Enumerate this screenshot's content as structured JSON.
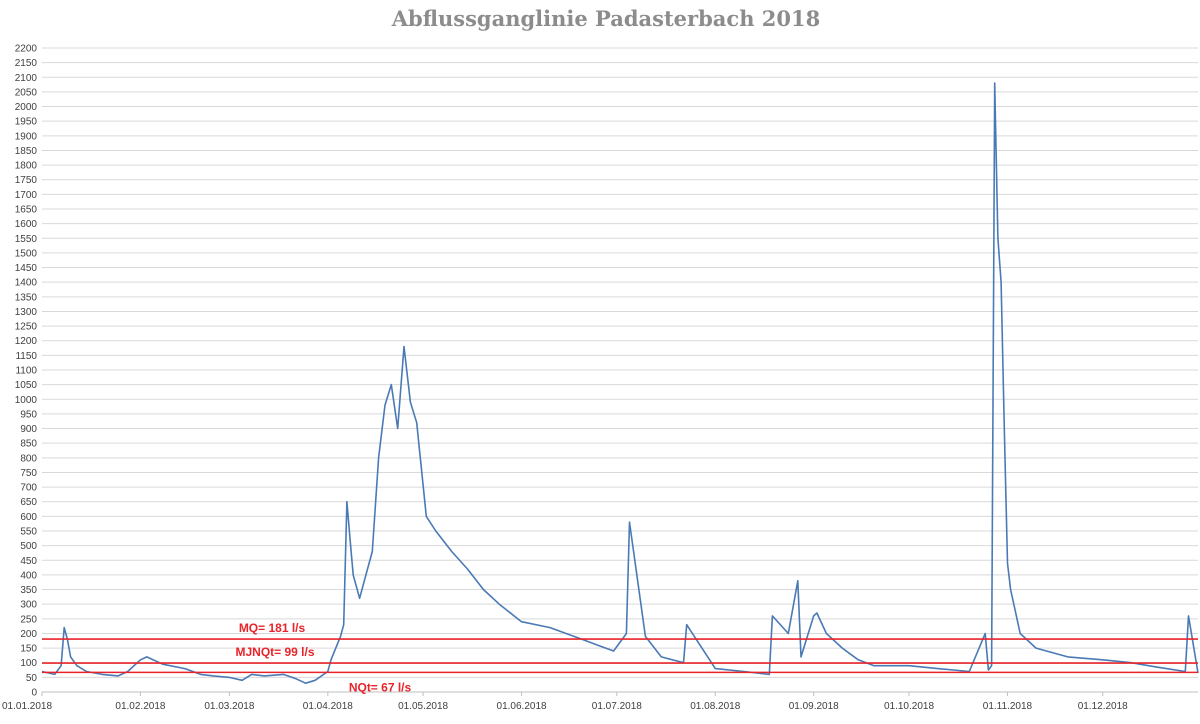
{
  "chart_data": {
    "type": "line",
    "title": "Abflussganglinie Padasterbach 2018",
    "xlabel": "",
    "ylabel": "",
    "ylim": [
      0,
      2200
    ],
    "y_ticks": [
      0,
      50,
      100,
      150,
      200,
      250,
      300,
      350,
      400,
      450,
      500,
      550,
      600,
      650,
      700,
      750,
      800,
      850,
      900,
      950,
      1000,
      1050,
      1100,
      1150,
      1200,
      1250,
      1300,
      1350,
      1400,
      1450,
      1500,
      1550,
      1600,
      1650,
      1700,
      1750,
      1800,
      1850,
      1900,
      1950,
      2000,
      2050,
      2100,
      2150,
      2200
    ],
    "x_ticks": [
      "01.01.2018",
      "01.02.2018",
      "01.03.2018",
      "01.04.2018",
      "01.05.2018",
      "01.06.2018",
      "01.07.2018",
      "01.08.2018",
      "01.09.2018",
      "01.10.2018",
      "01.11.2018",
      "01.12.2018"
    ],
    "grid": true,
    "series_color": "#4a7ab5",
    "reference_lines": [
      {
        "label": "MQ= 181 l/s",
        "value": 181,
        "color": "#e8242a"
      },
      {
        "label": "MJNQt= 99 l/s",
        "value": 99,
        "color": "#e8242a"
      },
      {
        "label": "NQt= 67 l/s",
        "value": 67,
        "color": "#e8242a"
      }
    ],
    "series": [
      {
        "x": [
          "01.01.2018",
          "05.01.2018",
          "07.01.2018",
          "08.01.2018",
          "09.01.2018",
          "10.01.2018",
          "12.01.2018",
          "15.01.2018",
          "20.01.2018",
          "25.01.2018",
          "28.01.2018",
          "01.02.2018",
          "03.02.2018",
          "08.02.2018",
          "15.02.2018",
          "20.02.2018",
          "24.02.2018",
          "01.03.2018",
          "05.03.2018",
          "08.03.2018",
          "12.03.2018",
          "18.03.2018",
          "22.03.2018",
          "25.03.2018",
          "28.03.2018",
          "01.04.2018",
          "02.04.2018",
          "05.04.2018",
          "06.04.2018",
          "07.04.2018",
          "08.04.2018",
          "09.04.2018",
          "11.04.2018",
          "13.04.2018",
          "15.04.2018",
          "17.04.2018",
          "19.04.2018",
          "21.04.2018",
          "23.04.2018",
          "25.04.2018",
          "27.04.2018",
          "29.04.2018",
          "02.05.2018",
          "05.05.2018",
          "10.05.2018",
          "15.05.2018",
          "20.05.2018",
          "25.05.2018",
          "01.06.2018",
          "10.06.2018",
          "20.06.2018",
          "25.06.2018",
          "30.06.2018",
          "04.07.2018",
          "05.07.2018",
          "10.07.2018",
          "15.07.2018",
          "22.07.2018",
          "23.07.2018",
          "01.08.2018",
          "10.08.2018",
          "18.08.2018",
          "19.08.2018",
          "24.08.2018",
          "27.08.2018",
          "28.08.2018",
          "01.09.2018",
          "02.09.2018",
          "05.09.2018",
          "10.09.2018",
          "15.09.2018",
          "20.09.2018",
          "01.10.2018",
          "10.10.2018",
          "15.10.2018",
          "20.10.2018",
          "25.10.2018",
          "26.10.2018",
          "27.10.2018",
          "28.10.2018",
          "29.10.2018",
          "30.10.2018",
          "31.10.2018",
          "01.11.2018",
          "02.11.2018",
          "05.11.2018",
          "10.11.2018",
          "20.11.2018",
          "01.12.2018",
          "10.12.2018",
          "18.12.2018",
          "27.12.2018",
          "28.12.2018",
          "31.12.2018"
        ],
        "values": [
          70,
          60,
          90,
          220,
          180,
          120,
          90,
          70,
          60,
          55,
          70,
          110,
          120,
          95,
          80,
          60,
          55,
          50,
          40,
          60,
          55,
          60,
          45,
          30,
          40,
          70,
          110,
          190,
          230,
          650,
          520,
          400,
          320,
          400,
          480,
          800,
          980,
          1050,
          900,
          1180,
          990,
          920,
          600,
          550,
          480,
          420,
          350,
          300,
          240,
          220,
          180,
          160,
          140,
          200,
          580,
          190,
          120,
          100,
          230,
          80,
          70,
          60,
          260,
          200,
          380,
          120,
          260,
          270,
          200,
          150,
          110,
          90,
          90,
          80,
          75,
          70,
          200,
          75,
          90,
          2080,
          1550,
          1400,
          900,
          440,
          350,
          200,
          150,
          120,
          110,
          100,
          85,
          70,
          260,
          65
        ]
      }
    ]
  }
}
